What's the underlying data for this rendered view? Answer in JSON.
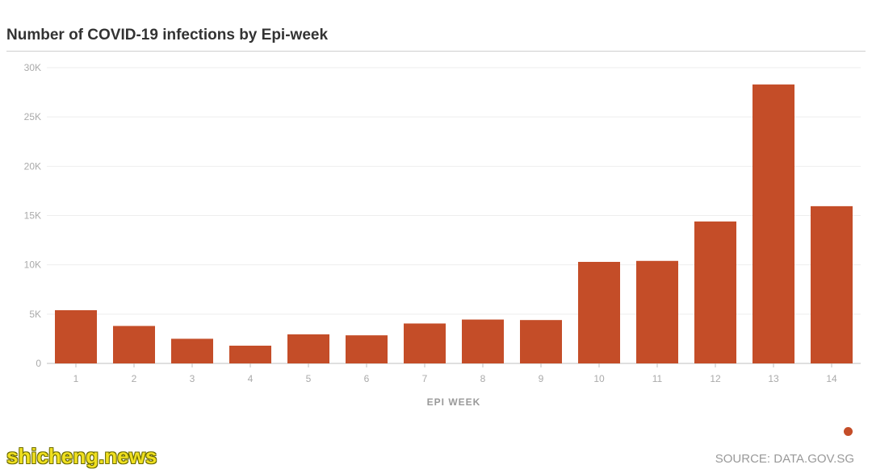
{
  "chart_data": {
    "type": "bar",
    "title": "Number of COVID-19 infections by Epi-week",
    "xlabel": "EPI WEEK",
    "ylabel": "",
    "categories": [
      "1",
      "2",
      "3",
      "4",
      "5",
      "6",
      "7",
      "8",
      "9",
      "10",
      "11",
      "12",
      "13",
      "14"
    ],
    "values": [
      5400,
      3800,
      2500,
      1800,
      2950,
      2850,
      4050,
      4450,
      4400,
      10300,
      10400,
      14400,
      28300,
      15950
    ],
    "ylim": [
      0,
      30000
    ],
    "yticks": [
      0,
      5000,
      10000,
      15000,
      20000,
      25000,
      30000
    ],
    "ytick_labels": [
      "0",
      "5K",
      "10K",
      "15K",
      "20K",
      "25K",
      "30K"
    ],
    "grid": true,
    "legend": "bottom-right",
    "color": "#c44d28"
  },
  "source": "SOURCE: DATA.GOV.SG",
  "watermark": "shicheng.news"
}
